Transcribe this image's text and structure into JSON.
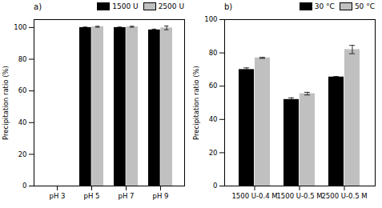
{
  "chart_data": [
    {
      "type": "bar",
      "title": "a)",
      "y_label": "Precipitation ratio (%)",
      "categories": [
        "pH 3",
        "pH 5",
        "pH 7",
        "pH 9"
      ],
      "series": [
        {
          "name": "1500 U",
          "color": "#000000",
          "values": [
            0,
            100,
            100,
            98.5
          ],
          "errors": [
            0,
            0.3,
            0.3,
            0.5
          ]
        },
        {
          "name": "2500 U",
          "color": "#c0c0c0",
          "values": [
            0,
            100.5,
            100.5,
            99.8
          ],
          "errors": [
            0,
            0.3,
            0.3,
            1.2
          ]
        }
      ],
      "ylim": [
        0,
        105
      ],
      "yticks": [
        0,
        20,
        40,
        60,
        80,
        100
      ],
      "legend": "top-right",
      "grid": false
    },
    {
      "type": "bar",
      "title": "b)",
      "y_label": "Precipitation ratio (%)",
      "categories": [
        "1500 U-0.4 M",
        "1500 U-0.5 M",
        "2500 U-0.5 M"
      ],
      "series": [
        {
          "name": "30 °C",
          "color": "#000000",
          "values": [
            70,
            52,
            65.5
          ],
          "errors": [
            1,
            1,
            0.3
          ]
        },
        {
          "name": "50 °C",
          "color": "#c0c0c0",
          "values": [
            77,
            55.5,
            82
          ],
          "errors": [
            0.3,
            0.8,
            2.5
          ]
        }
      ],
      "ylim": [
        0,
        100
      ],
      "yticks": [
        0,
        20,
        40,
        60,
        80,
        100
      ],
      "legend": "top-right",
      "grid": false
    }
  ]
}
